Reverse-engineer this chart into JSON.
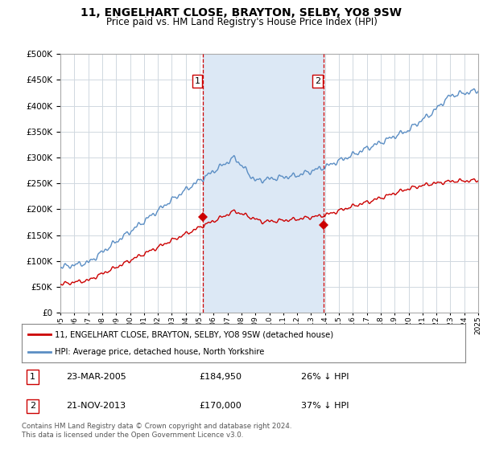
{
  "title": "11, ENGELHART CLOSE, BRAYTON, SELBY, YO8 9SW",
  "subtitle": "Price paid vs. HM Land Registry's House Price Index (HPI)",
  "hpi_label": "HPI: Average price, detached house, North Yorkshire",
  "price_label": "11, ENGELHART CLOSE, BRAYTON, SELBY, YO8 9SW (detached house)",
  "ylim": [
    0,
    500000
  ],
  "xlim": [
    1995,
    2025
  ],
  "transactions": [
    {
      "date": 2005.22,
      "price": 184950,
      "label": "1"
    },
    {
      "date": 2013.89,
      "price": 170000,
      "label": "2"
    }
  ],
  "transaction_details": [
    {
      "num": "1",
      "date": "23-MAR-2005",
      "price": "£184,950",
      "pct": "26% ↓ HPI"
    },
    {
      "num": "2",
      "date": "21-NOV-2013",
      "price": "£170,000",
      "pct": "37% ↓ HPI"
    }
  ],
  "footer": "Contains HM Land Registry data © Crown copyright and database right 2024.\nThis data is licensed under the Open Government Licence v3.0.",
  "hpi_color": "#5b8ec4",
  "price_color": "#cc0000",
  "vline_color": "#cc0000",
  "shade_color": "#dce8f5",
  "plot_bg_color": "#ffffff",
  "grid_color": "#d0d8e0"
}
